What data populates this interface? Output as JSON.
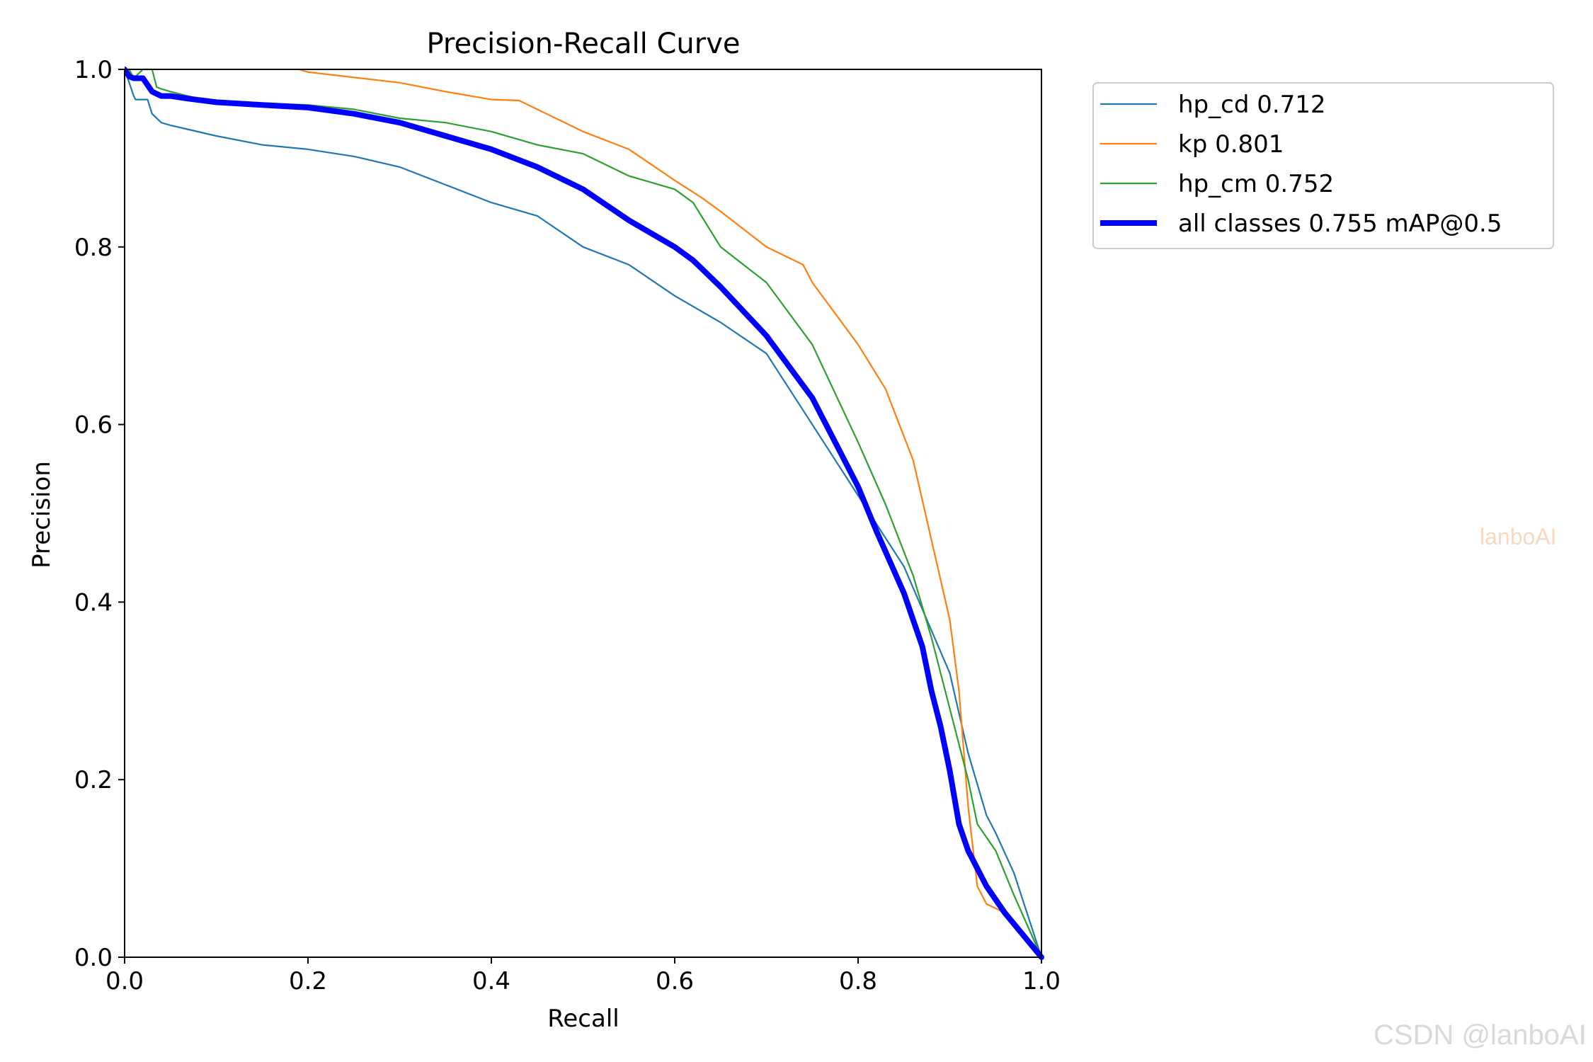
{
  "chart_data": {
    "type": "line",
    "title": "Precision-Recall Curve",
    "xlabel": "Recall",
    "ylabel": "Precision",
    "xlim": [
      0,
      1
    ],
    "ylim": [
      0,
      1
    ],
    "xticks": [
      "0.0",
      "0.2",
      "0.4",
      "0.6",
      "0.8",
      "1.0"
    ],
    "yticks": [
      "0.0",
      "0.2",
      "0.4",
      "0.6",
      "0.8",
      "1.0"
    ],
    "grid": false,
    "legend_position": "outside upper right",
    "series": [
      {
        "name": "hp_cd 0.712",
        "color": "#1f77b4",
        "width": "thin",
        "x": [
          0,
          0.005,
          0.01,
          0.012,
          0.025,
          0.03,
          0.04,
          0.05,
          0.1,
          0.15,
          0.2,
          0.25,
          0.3,
          0.35,
          0.4,
          0.45,
          0.5,
          0.55,
          0.6,
          0.65,
          0.7,
          0.75,
          0.8,
          0.85,
          0.9,
          0.92,
          0.94,
          0.95,
          0.97,
          1.0
        ],
        "y": [
          1.0,
          0.985,
          0.97,
          0.966,
          0.966,
          0.95,
          0.94,
          0.937,
          0.925,
          0.915,
          0.91,
          0.902,
          0.89,
          0.87,
          0.85,
          0.835,
          0.8,
          0.78,
          0.745,
          0.715,
          0.68,
          0.6,
          0.52,
          0.44,
          0.32,
          0.23,
          0.16,
          0.14,
          0.095,
          0.0
        ]
      },
      {
        "name": "kp 0.801",
        "color": "#ff7f0e",
        "width": "thin",
        "x": [
          0.19,
          0.2,
          0.3,
          0.35,
          0.4,
          0.43,
          0.45,
          0.5,
          0.55,
          0.6,
          0.63,
          0.65,
          0.7,
          0.74,
          0.75,
          0.8,
          0.83,
          0.86,
          0.88,
          0.9,
          0.91,
          0.92,
          0.93,
          0.94,
          0.96,
          1.0
        ],
        "y": [
          1.0,
          0.997,
          0.985,
          0.975,
          0.966,
          0.965,
          0.955,
          0.93,
          0.91,
          0.875,
          0.855,
          0.84,
          0.8,
          0.78,
          0.76,
          0.69,
          0.64,
          0.56,
          0.47,
          0.38,
          0.3,
          0.17,
          0.08,
          0.06,
          0.05,
          0.0
        ]
      },
      {
        "name": "hp_cm 0.752",
        "color": "#2ca02c",
        "width": "thin",
        "x": [
          0,
          0.005,
          0.01,
          0.02,
          0.03,
          0.035,
          0.04,
          0.05,
          0.1,
          0.15,
          0.2,
          0.25,
          0.3,
          0.35,
          0.4,
          0.45,
          0.5,
          0.55,
          0.6,
          0.62,
          0.65,
          0.7,
          0.75,
          0.8,
          0.83,
          0.86,
          0.88,
          0.9,
          0.92,
          0.93,
          0.95,
          0.97,
          1.0
        ],
        "y": [
          1.0,
          1.0,
          0.99,
          1.0,
          1.0,
          0.98,
          0.978,
          0.975,
          0.962,
          0.962,
          0.96,
          0.955,
          0.945,
          0.94,
          0.93,
          0.915,
          0.905,
          0.88,
          0.865,
          0.85,
          0.8,
          0.76,
          0.69,
          0.58,
          0.51,
          0.43,
          0.36,
          0.28,
          0.2,
          0.15,
          0.12,
          0.07,
          0.0
        ]
      },
      {
        "name": "all classes 0.755 mAP@0.5",
        "color": "#0000ff",
        "width": "thick",
        "x": [
          0,
          0.005,
          0.01,
          0.02,
          0.03,
          0.04,
          0.05,
          0.07,
          0.1,
          0.15,
          0.2,
          0.25,
          0.3,
          0.35,
          0.4,
          0.45,
          0.5,
          0.55,
          0.6,
          0.62,
          0.65,
          0.7,
          0.75,
          0.78,
          0.8,
          0.82,
          0.85,
          0.87,
          0.88,
          0.89,
          0.9,
          0.91,
          0.92,
          0.94,
          0.96,
          1.0
        ],
        "y": [
          1.0,
          0.992,
          0.99,
          0.99,
          0.975,
          0.97,
          0.97,
          0.967,
          0.963,
          0.96,
          0.957,
          0.95,
          0.94,
          0.925,
          0.91,
          0.89,
          0.865,
          0.83,
          0.8,
          0.785,
          0.755,
          0.7,
          0.63,
          0.57,
          0.53,
          0.48,
          0.41,
          0.35,
          0.3,
          0.26,
          0.21,
          0.15,
          0.12,
          0.08,
          0.05,
          0.0
        ]
      }
    ]
  },
  "watermarks": {
    "center_right": "lanboAI",
    "bottom_right": "CSDN @lanboAI"
  }
}
